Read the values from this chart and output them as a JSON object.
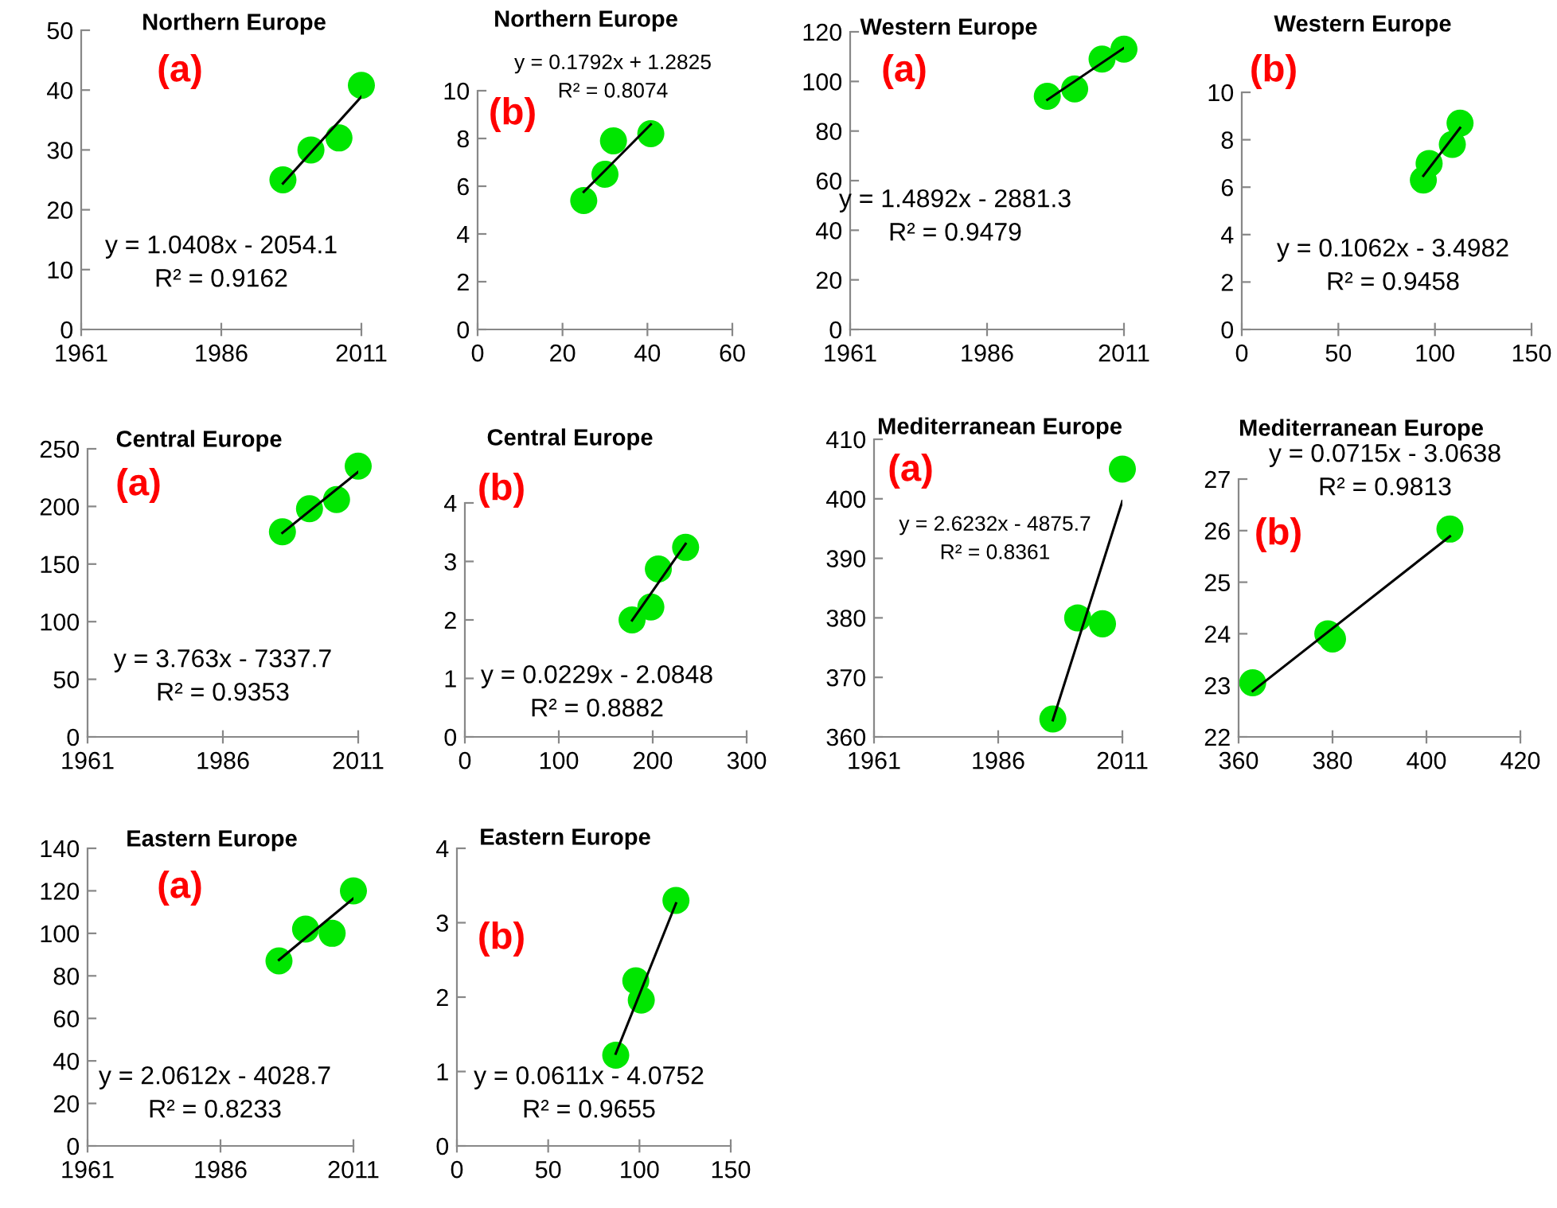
{
  "chart_data": [
    {
      "type": "scatter",
      "title": "Northern Europe",
      "xlim": [
        1961,
        2011
      ],
      "xticks": [
        1961,
        1986,
        2011
      ],
      "ylim": [
        0,
        50
      ],
      "yticks": [
        0,
        10,
        20,
        30,
        40,
        50
      ],
      "grid": false,
      "series": [
        {
          "color": "#00e600",
          "marker": "circle",
          "x": [
            1997,
            2002,
            2007,
            2011
          ],
          "values": [
            25,
            30,
            32,
            40.8
          ]
        },
        {
          "type": "line",
          "color": "#000000",
          "x": [
            1997,
            2011
          ],
          "values": [
            24.4,
            38.9
          ]
        }
      ],
      "annotations": [
        "(a)",
        "y = 1.0408x - 2054.1",
        "R² = 0.9162"
      ]
    },
    {
      "type": "scatter",
      "title": "Northern Europe",
      "xlim": [
        0,
        60
      ],
      "xticks": [
        0,
        20,
        40,
        60
      ],
      "ylim": [
        0,
        10
      ],
      "yticks": [
        0,
        2,
        4,
        6,
        8,
        10
      ],
      "grid": false,
      "series": [
        {
          "color": "#00e600",
          "marker": "circle",
          "x": [
            25,
            30,
            32,
            40.8
          ],
          "values": [
            5.4,
            6.5,
            7.9,
            8.2
          ]
        },
        {
          "type": "line",
          "color": "#000000",
          "x": [
            25,
            40.8
          ],
          "values": [
            5.76,
            8.59
          ]
        }
      ],
      "annotations": [
        "(b)",
        "y = 0.1792x + 1.2825",
        "R² = 0.8074"
      ]
    },
    {
      "type": "scatter",
      "title": "Western Europe",
      "xlim": [
        1961,
        2011
      ],
      "xticks": [
        1961,
        1986,
        2011
      ],
      "ylim": [
        0,
        120
      ],
      "yticks": [
        0,
        20,
        40,
        60,
        80,
        100,
        120
      ],
      "grid": false,
      "series": [
        {
          "color": "#00e600",
          "marker": "circle",
          "x": [
            1997,
            2002,
            2007,
            2011
          ],
          "values": [
            94,
            97,
            109,
            113
          ]
        },
        {
          "type": "line",
          "color": "#000000",
          "x": [
            1997,
            2011
          ],
          "values": [
            92.6,
            113.5
          ]
        }
      ],
      "annotations": [
        "(a)",
        "y = 1.4892x - 2881.3",
        "R² = 0.9479"
      ]
    },
    {
      "type": "scatter",
      "title": "Western Europe",
      "xlim": [
        0,
        150
      ],
      "xticks": [
        0,
        50,
        100,
        150
      ],
      "ylim": [
        0,
        10
      ],
      "yticks": [
        0,
        2,
        4,
        6,
        8,
        10
      ],
      "grid": false,
      "series": [
        {
          "color": "#00e600",
          "marker": "circle",
          "x": [
            94,
            97,
            109,
            113
          ],
          "values": [
            6.3,
            7.0,
            7.8,
            8.7
          ]
        },
        {
          "type": "line",
          "color": "#000000",
          "x": [
            94,
            113
          ],
          "values": [
            6.48,
            8.5
          ]
        }
      ],
      "annotations": [
        "(b)",
        "y = 0.1062x - 3.4982",
        "R² = 0.9458"
      ]
    },
    {
      "type": "scatter",
      "title": "Central Europe",
      "xlim": [
        1961,
        2011
      ],
      "xticks": [
        1961,
        1986,
        2011
      ],
      "ylim": [
        0,
        250
      ],
      "yticks": [
        0,
        50,
        100,
        150,
        200,
        250
      ],
      "grid": false,
      "series": [
        {
          "color": "#00e600",
          "marker": "circle",
          "x": [
            1997,
            2002,
            2007,
            2011
          ],
          "values": [
            178,
            198,
            206,
            235
          ]
        },
        {
          "type": "line",
          "color": "#000000",
          "x": [
            1997,
            2011
          ],
          "values": [
            177,
            230
          ]
        }
      ],
      "annotations": [
        "(a)",
        "y = 3.763x - 7337.7",
        "R² = 0.9353"
      ]
    },
    {
      "type": "scatter",
      "title": "Central Europe",
      "xlim": [
        0,
        300
      ],
      "xticks": [
        0,
        100,
        200,
        300
      ],
      "ylim": [
        0,
        4
      ],
      "yticks": [
        0,
        1,
        2,
        3,
        4
      ],
      "grid": false,
      "series": [
        {
          "color": "#00e600",
          "marker": "circle",
          "x": [
            178,
            198,
            206,
            235
          ],
          "values": [
            2.0,
            2.22,
            2.87,
            3.24
          ]
        },
        {
          "type": "line",
          "color": "#000000",
          "x": [
            178,
            235
          ],
          "values": [
            1.99,
            3.3
          ]
        }
      ],
      "annotations": [
        "(b)",
        "y = 0.0229x - 2.0848",
        "R² = 0.8882"
      ]
    },
    {
      "type": "scatter",
      "title": "Mediterranean Europe",
      "xlim": [
        1961,
        2011
      ],
      "xticks": [
        1961,
        1986,
        2011
      ],
      "ylim": [
        360,
        410
      ],
      "yticks": [
        360,
        370,
        380,
        390,
        400,
        410
      ],
      "grid": false,
      "series": [
        {
          "color": "#00e600",
          "marker": "circle",
          "x": [
            1997,
            2002,
            2007,
            2011
          ],
          "values": [
            363,
            380,
            379,
            405
          ]
        },
        {
          "type": "line",
          "color": "#000000",
          "x": [
            1997,
            2011
          ],
          "values": [
            362.8,
            399.6
          ]
        }
      ],
      "annotations": [
        "(a)",
        "y = 2.6232x - 4875.7",
        "R² = 0.8361"
      ]
    },
    {
      "type": "scatter",
      "title": "Mediterranean Europe",
      "xlim": [
        360,
        420
      ],
      "xticks": [
        360,
        380,
        400,
        420
      ],
      "ylim": [
        22,
        27
      ],
      "yticks": [
        22,
        23,
        24,
        25,
        26,
        27
      ],
      "grid": false,
      "series": [
        {
          "color": "#00e600",
          "marker": "circle",
          "x": [
            363,
            379,
            380,
            405
          ],
          "values": [
            23.05,
            24.0,
            23.9,
            26.03
          ]
        },
        {
          "type": "line",
          "color": "#000000",
          "x": [
            363,
            405
          ],
          "values": [
            22.89,
            25.89
          ]
        }
      ],
      "annotations": [
        "(b)",
        "y = 0.0715x - 3.0638",
        "R² = 0.9813"
      ]
    },
    {
      "type": "scatter",
      "title": "Eastern Europe",
      "xlim": [
        1961,
        2011
      ],
      "xticks": [
        1961,
        1986,
        2011
      ],
      "ylim": [
        0,
        140
      ],
      "yticks": [
        0,
        20,
        40,
        60,
        80,
        100,
        120,
        140
      ],
      "grid": false,
      "series": [
        {
          "color": "#00e600",
          "marker": "circle",
          "x": [
            1997,
            2002,
            2007,
            2011
          ],
          "values": [
            87,
            102,
            100,
            120
          ]
        },
        {
          "type": "line",
          "color": "#000000",
          "x": [
            1997,
            2011
          ],
          "values": [
            87.5,
            116.4
          ]
        }
      ],
      "annotations": [
        "(a)",
        "y = 2.0612x - 4028.7",
        "R² = 0.8233"
      ]
    },
    {
      "type": "scatter",
      "title": "Eastern Europe",
      "xlim": [
        0,
        150
      ],
      "xticks": [
        0,
        50,
        100,
        150
      ],
      "ylim": [
        0,
        4
      ],
      "yticks": [
        0,
        1,
        2,
        3,
        4
      ],
      "grid": false,
      "series": [
        {
          "color": "#00e600",
          "marker": "circle",
          "x": [
            87,
            98,
            101,
            120
          ],
          "values": [
            1.22,
            2.22,
            1.96,
            3.3
          ]
        },
        {
          "type": "line",
          "color": "#000000",
          "x": [
            87,
            120
          ],
          "values": [
            1.24,
            3.26
          ]
        }
      ],
      "annotations": [
        "(b)",
        "y = 0.0611x - 4.0752",
        "R² = 0.9655"
      ]
    }
  ]
}
